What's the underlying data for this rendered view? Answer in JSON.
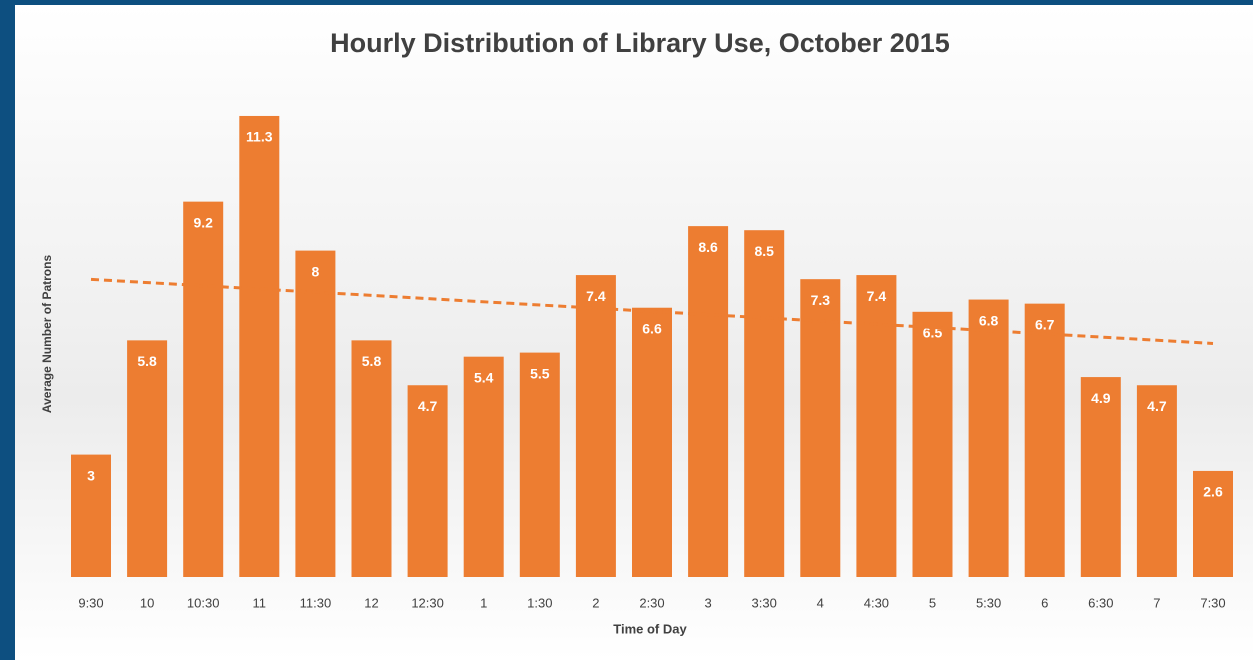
{
  "chart_data": {
    "type": "bar",
    "title": "Hourly Distribution of Library Use, October 2015",
    "x_label": "Time of Day",
    "y_label": "Average Number of Patrons",
    "categories": [
      "9:30",
      "10",
      "10:30",
      "11",
      "11:30",
      "12",
      "12:30",
      "1",
      "1:30",
      "2",
      "2:30",
      "3",
      "3:30",
      "4",
      "4:30",
      "5",
      "5:30",
      "6",
      "6:30",
      "7",
      "7:30"
    ],
    "values": [
      3,
      5.8,
      9.2,
      11.3,
      8,
      5.8,
      4.7,
      5.4,
      5.5,
      7.4,
      6.6,
      8.6,
      8.5,
      7.3,
      7.4,
      6.5,
      6.8,
      6.7,
      4.9,
      4.7,
      2.6
    ],
    "color": "#ed7d31",
    "trendline": "linear"
  }
}
